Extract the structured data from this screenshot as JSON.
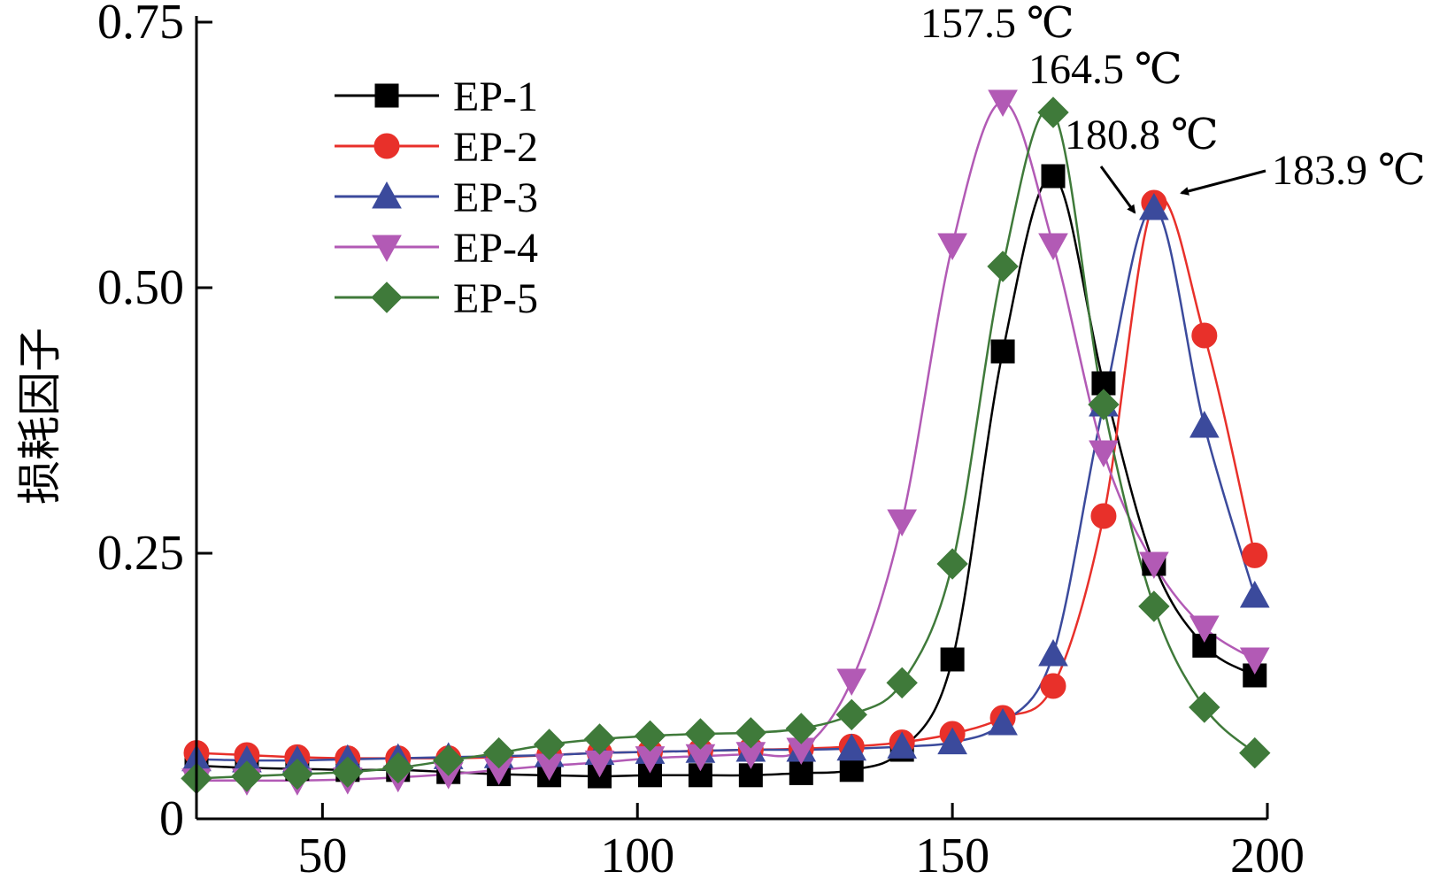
{
  "chart_data": {
    "type": "line",
    "title": "",
    "xlabel": "",
    "ylabel": "损耗因子",
    "xlim": [
      30,
      200
    ],
    "ylim": [
      0,
      0.75
    ],
    "xticks": [
      50,
      100,
      150,
      200
    ],
    "xtick_labels": [
      "50",
      "100",
      "150",
      "200"
    ],
    "yticks": [
      0,
      0.25,
      0.5,
      0.75
    ],
    "ytick_labels": [
      "0",
      "0.25",
      "0.50",
      "0.75"
    ],
    "grid": false,
    "legend_position": "top-left",
    "series": [
      {
        "name": "EP-1",
        "color": "#000000",
        "marker": "square",
        "x": [
          30,
          38,
          46,
          54,
          62,
          70,
          78,
          86,
          94,
          102,
          110,
          118,
          126,
          134,
          142,
          150,
          158,
          166,
          174,
          182,
          190,
          198
        ],
        "y": [
          0.05,
          0.048,
          0.047,
          0.046,
          0.046,
          0.044,
          0.042,
          0.041,
          0.04,
          0.041,
          0.041,
          0.041,
          0.043,
          0.046,
          0.065,
          0.15,
          0.44,
          0.605,
          0.41,
          0.24,
          0.163,
          0.135
        ]
      },
      {
        "name": "EP-2",
        "color": "#e8302a",
        "marker": "circle",
        "x": [
          30,
          38,
          46,
          54,
          62,
          70,
          78,
          86,
          94,
          102,
          110,
          118,
          126,
          134,
          142,
          150,
          158,
          166,
          174,
          182,
          190,
          198
        ],
        "y": [
          0.062,
          0.06,
          0.058,
          0.057,
          0.057,
          0.057,
          0.058,
          0.06,
          0.062,
          0.063,
          0.064,
          0.065,
          0.066,
          0.068,
          0.072,
          0.08,
          0.095,
          0.125,
          0.285,
          0.58,
          0.455,
          0.248
        ]
      },
      {
        "name": "EP-3",
        "color": "#3b4a9c",
        "marker": "triangle-up",
        "x": [
          30,
          38,
          46,
          54,
          62,
          70,
          78,
          86,
          94,
          102,
          110,
          118,
          126,
          134,
          142,
          150,
          158,
          166,
          174,
          182,
          190,
          198
        ],
        "y": [
          0.056,
          0.055,
          0.055,
          0.056,
          0.057,
          0.058,
          0.059,
          0.06,
          0.062,
          0.063,
          0.064,
          0.065,
          0.065,
          0.066,
          0.068,
          0.072,
          0.09,
          0.155,
          0.39,
          0.575,
          0.37,
          0.21
        ]
      },
      {
        "name": "EP-4",
        "color": "#b25ab5",
        "marker": "triangle-down",
        "x": [
          30,
          38,
          46,
          54,
          62,
          70,
          78,
          86,
          94,
          102,
          110,
          118,
          126,
          134,
          142,
          150,
          158,
          166,
          174,
          182,
          190,
          198
        ],
        "y": [
          0.036,
          0.036,
          0.036,
          0.037,
          0.039,
          0.042,
          0.046,
          0.05,
          0.053,
          0.057,
          0.059,
          0.061,
          0.065,
          0.13,
          0.28,
          0.54,
          0.675,
          0.54,
          0.345,
          0.24,
          0.18,
          0.15
        ]
      },
      {
        "name": "EP-5",
        "color": "#3f7a3a",
        "marker": "diamond",
        "x": [
          30,
          38,
          46,
          54,
          62,
          70,
          78,
          86,
          94,
          102,
          110,
          118,
          126,
          134,
          142,
          150,
          158,
          166,
          174,
          182,
          190,
          198
        ],
        "y": [
          0.038,
          0.04,
          0.042,
          0.044,
          0.048,
          0.055,
          0.062,
          0.07,
          0.075,
          0.078,
          0.08,
          0.081,
          0.085,
          0.098,
          0.128,
          0.24,
          0.52,
          0.665,
          0.39,
          0.2,
          0.105,
          0.062
        ]
      }
    ],
    "annotations": [
      {
        "text": "157.5 ℃",
        "x": 157.5,
        "arrow": false
      },
      {
        "text": "164.5 ℃",
        "x": 164.5,
        "arrow": false
      },
      {
        "text": "180.8 ℃",
        "x": 180.8,
        "arrow": true
      },
      {
        "text": "183.9 ℃",
        "x": 183.9,
        "arrow": true
      }
    ]
  }
}
